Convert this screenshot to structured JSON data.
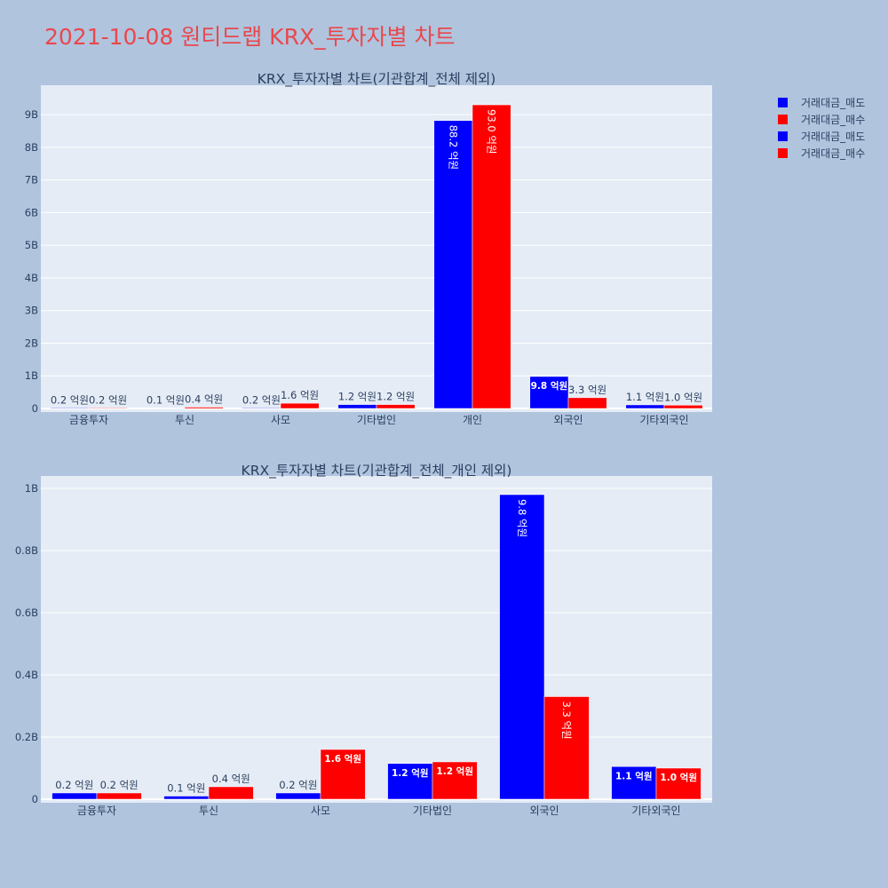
{
  "title": "2021-10-08 원티드랩 KRX_투자자별 차트",
  "legend": [
    {
      "label": "거래대금_매도",
      "color": "#0000ff"
    },
    {
      "label": "거래대금_매수",
      "color": "#ff0000"
    },
    {
      "label": "거래대금_매도",
      "color": "#0000ff"
    },
    {
      "label": "거래대금_매수",
      "color": "#ff0000"
    }
  ],
  "chart_data": [
    {
      "type": "bar",
      "title": "KRX_투자자별 차트(기관합계_전체 제외)",
      "categories": [
        "금융투자",
        "투신",
        "사모",
        "기타법인",
        "개인",
        "외국인",
        "기타외국인"
      ],
      "ylim": [
        0,
        9.9
      ],
      "yticks": [
        0,
        1,
        2,
        3,
        4,
        5,
        6,
        7,
        8,
        9
      ],
      "ytick_labels": [
        "0",
        "1B",
        "2B",
        "3B",
        "4B",
        "5B",
        "6B",
        "7B",
        "8B",
        "9B"
      ],
      "grid": true,
      "series": [
        {
          "name": "거래대금_매도",
          "color": "#0000ff",
          "values": [
            0.02,
            0.01,
            0.02,
            0.12,
            8.82,
            0.98,
            0.11
          ],
          "labels": [
            "0.2 억원",
            "0.1 억원",
            "0.2 억원",
            "1.2 억원",
            "88.2 억원",
            "9.8 억원",
            "1.1 억원"
          ]
        },
        {
          "name": "거래대금_매수",
          "color": "#ff0000",
          "values": [
            0.02,
            0.04,
            0.16,
            0.12,
            9.3,
            0.33,
            0.1
          ],
          "labels": [
            "0.2 억원",
            "0.4 억원",
            "1.6 억원",
            "1.2 억원",
            "93.0 억원",
            "3.3 억원",
            "1.0 억원"
          ]
        }
      ]
    },
    {
      "type": "bar",
      "title": "KRX_투자자별 차트(기관합계_전체_개인 제외)",
      "categories": [
        "금융투자",
        "투신",
        "사모",
        "기타법인",
        "외국인",
        "기타외국인"
      ],
      "ylim": [
        0,
        1.04
      ],
      "yticks": [
        0,
        0.2,
        0.4,
        0.6,
        0.8,
        1.0
      ],
      "ytick_labels": [
        "0",
        "0.2B",
        "0.4B",
        "0.6B",
        "0.8B",
        "1B"
      ],
      "grid": true,
      "series": [
        {
          "name": "거래대금_매도",
          "color": "#0000ff",
          "values": [
            0.02,
            0.01,
            0.02,
            0.115,
            0.98,
            0.105
          ],
          "labels": [
            "0.2 억원",
            "0.1 억원",
            "0.2 억원",
            "1.2 억원",
            "9.8 억원",
            "1.1 억원"
          ]
        },
        {
          "name": "거래대금_매수",
          "color": "#ff0000",
          "values": [
            0.02,
            0.04,
            0.16,
            0.12,
            0.33,
            0.1
          ],
          "labels": [
            "0.2 억원",
            "0.4 억원",
            "1.6 억원",
            "1.2 억원",
            "3.3 억원",
            "1.0 억원"
          ]
        }
      ]
    }
  ]
}
